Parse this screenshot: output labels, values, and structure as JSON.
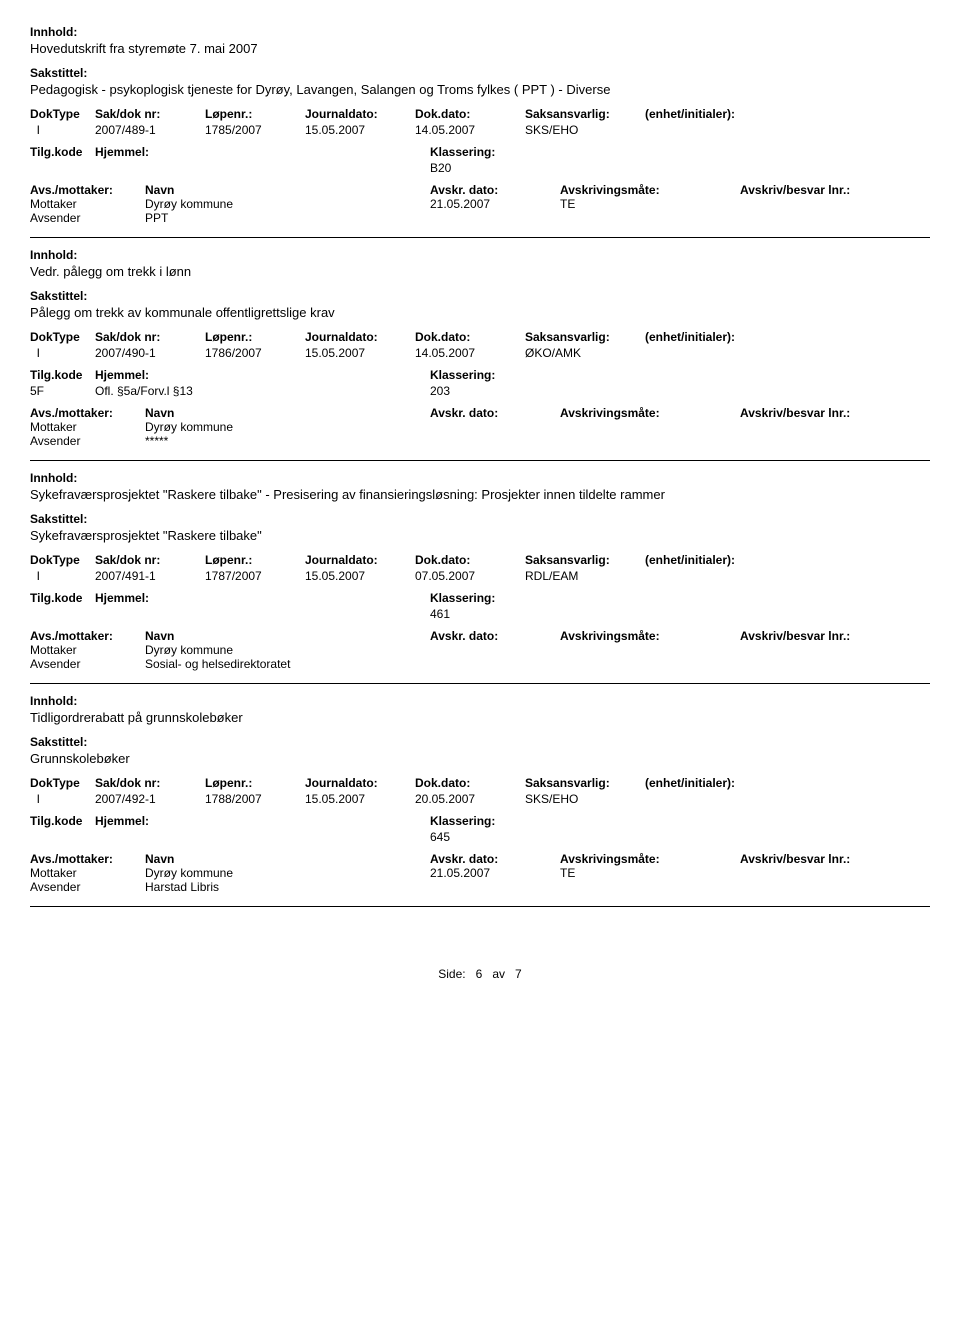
{
  "labels": {
    "innhold": "Innhold:",
    "sakstittel": "Sakstittel:",
    "doktype": "DokType",
    "sakdok": "Sak/dok nr:",
    "lopenr": "Løpenr.:",
    "journaldato": "Journaldato:",
    "dokdato": "Dok.dato:",
    "saksansvarlig": "Saksansvarlig:",
    "enhet": "(enhet/initialer):",
    "tilgkode": "Tilg.kode",
    "hjemmel": "Hjemmel:",
    "klassering": "Klassering:",
    "avsmottaker": "Avs./mottaker:",
    "navn": "Navn",
    "avskrdato": "Avskr. dato:",
    "avskrivingsmate": "Avskrivingsmåte:",
    "avskrivbesvar": "Avskriv/besvar lnr.:",
    "mottaker": "Mottaker",
    "avsender": "Avsender"
  },
  "records": [
    {
      "innhold": "Hovedutskrift fra styremøte 7. mai 2007",
      "sakstittel": "Pedagogisk - psykoplogisk tjeneste for Dyrøy, Lavangen, Salangen og Troms fylkes ( PPT ) - Diverse",
      "doktype": "I",
      "sakdok": "2007/489-1",
      "lopenr": "1785/2007",
      "journaldato": "15.05.2007",
      "dokdato": "14.05.2007",
      "saksansvarlig": "SKS/EHO",
      "tilgkode": "",
      "hjemmel": "",
      "klassering": "B20",
      "parties": [
        {
          "role": "Mottaker",
          "name": "Dyrøy kommune",
          "date": "21.05.2007",
          "mate": "TE"
        },
        {
          "role": "Avsender",
          "name": "PPT",
          "date": "",
          "mate": ""
        }
      ]
    },
    {
      "innhold": "Vedr. pålegg om trekk i lønn",
      "sakstittel": "Pålegg om trekk av kommunale offentligrettslige krav",
      "doktype": "I",
      "sakdok": "2007/490-1",
      "lopenr": "1786/2007",
      "journaldato": "15.05.2007",
      "dokdato": "14.05.2007",
      "saksansvarlig": "ØKO/AMK",
      "tilgkode": "5F",
      "hjemmel": "Ofl. §5a/Forv.l §13",
      "klassering": "203",
      "parties": [
        {
          "role": "Mottaker",
          "name": "Dyrøy kommune",
          "date": "",
          "mate": ""
        },
        {
          "role": "Avsender",
          "name": "*****",
          "date": "",
          "mate": ""
        }
      ]
    },
    {
      "innhold": "Sykefraværsprosjektet \"Raskere tilbake\" - Presisering av finansieringsløsning: Prosjekter innen tildelte rammer",
      "sakstittel": "Sykefraværsprosjektet \"Raskere tilbake\"",
      "doktype": "I",
      "sakdok": "2007/491-1",
      "lopenr": "1787/2007",
      "journaldato": "15.05.2007",
      "dokdato": "07.05.2007",
      "saksansvarlig": "RDL/EAM",
      "tilgkode": "",
      "hjemmel": "",
      "klassering": "461",
      "parties": [
        {
          "role": "Mottaker",
          "name": "Dyrøy kommune",
          "date": "",
          "mate": ""
        },
        {
          "role": "Avsender",
          "name": "Sosial- og helsedirektoratet",
          "date": "",
          "mate": ""
        }
      ]
    },
    {
      "innhold": "Tidligordrerabatt på grunnskolebøker",
      "sakstittel": "Grunnskolebøker",
      "doktype": "I",
      "sakdok": "2007/492-1",
      "lopenr": "1788/2007",
      "journaldato": "15.05.2007",
      "dokdato": "20.05.2007",
      "saksansvarlig": "SKS/EHO",
      "tilgkode": "",
      "hjemmel": "",
      "klassering": "645",
      "parties": [
        {
          "role": "Mottaker",
          "name": "Dyrøy kommune",
          "date": "21.05.2007",
          "mate": "TE"
        },
        {
          "role": "Avsender",
          "name": "Harstad Libris",
          "date": "",
          "mate": ""
        }
      ]
    }
  ],
  "footer": {
    "side_label": "Side:",
    "page": "6",
    "av_label": "av",
    "total": "7"
  }
}
